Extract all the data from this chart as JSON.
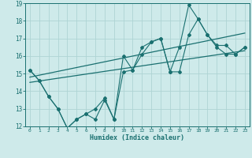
{
  "xlabel": "Humidex (Indice chaleur)",
  "bg_color": "#ceeaea",
  "grid_color": "#aed4d4",
  "line_color": "#1a7070",
  "xlim": [
    -0.5,
    23.5
  ],
  "ylim": [
    12,
    19
  ],
  "xticks": [
    0,
    1,
    2,
    3,
    4,
    5,
    6,
    7,
    8,
    9,
    10,
    11,
    12,
    13,
    14,
    15,
    16,
    17,
    18,
    19,
    20,
    21,
    22,
    23
  ],
  "yticks": [
    12,
    13,
    14,
    15,
    16,
    17,
    18,
    19
  ],
  "series1_x": [
    0,
    1,
    2,
    3,
    4,
    5,
    6,
    7,
    8,
    9,
    10,
    11,
    12,
    13,
    14,
    15,
    16,
    17,
    18,
    19,
    20,
    21,
    22,
    23
  ],
  "series1_y": [
    15.2,
    14.6,
    13.7,
    13.0,
    11.9,
    12.4,
    12.7,
    13.0,
    13.6,
    12.4,
    15.1,
    15.2,
    16.1,
    16.8,
    17.0,
    15.1,
    15.1,
    17.2,
    18.1,
    17.2,
    16.5,
    16.1,
    16.1,
    16.5
  ],
  "series2_x": [
    0,
    23
  ],
  "series2_y": [
    14.8,
    17.3
  ],
  "series3_x": [
    0,
    23
  ],
  "series3_y": [
    14.5,
    16.3
  ],
  "series4_x": [
    0,
    1,
    2,
    3,
    4,
    5,
    6,
    7,
    8,
    9,
    10,
    11,
    12,
    13,
    14,
    15,
    16,
    17,
    18,
    19,
    20,
    21,
    22,
    23
  ],
  "series4_y": [
    15.2,
    14.6,
    13.7,
    13.0,
    11.9,
    12.4,
    12.7,
    12.4,
    13.5,
    12.4,
    16.0,
    15.2,
    16.5,
    16.8,
    17.0,
    15.1,
    16.5,
    18.9,
    18.1,
    17.2,
    16.6,
    16.6,
    16.1,
    16.5
  ]
}
